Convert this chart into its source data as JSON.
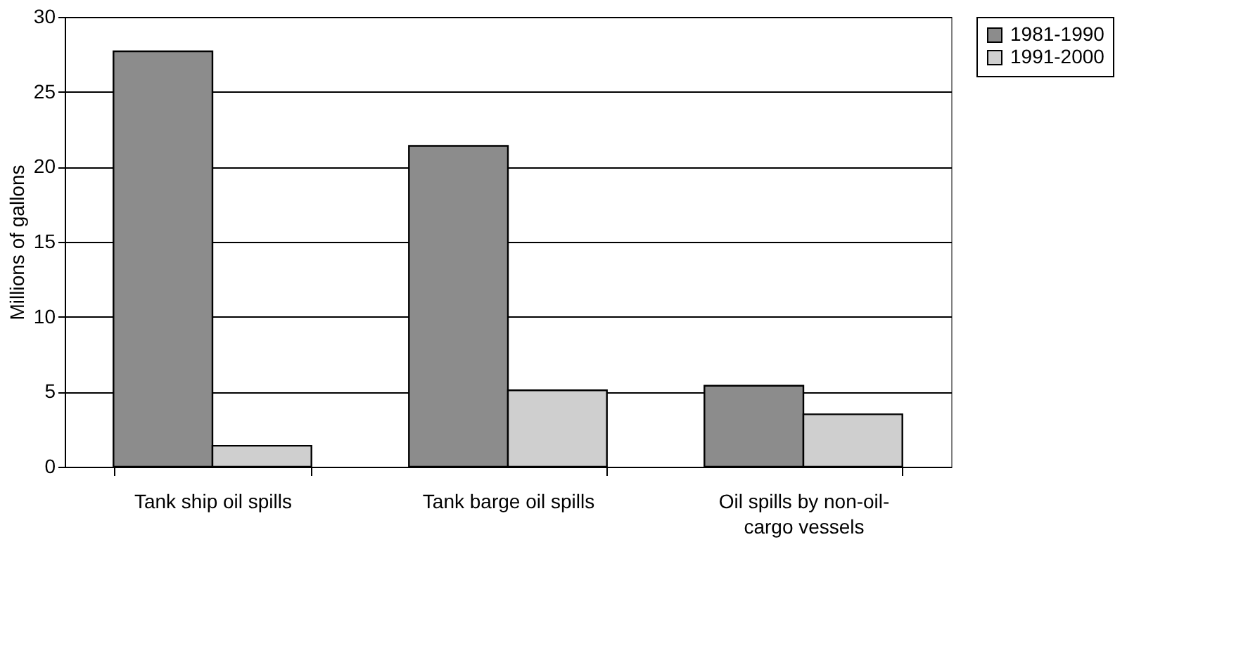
{
  "chart_data": {
    "type": "bar",
    "ylabel": "Millions of gallons",
    "categories": [
      "Tank ship oil spills",
      "Tank barge oil spills",
      "Oil spills by non-oil-cargo vessels"
    ],
    "series": [
      {
        "name": "1981-1990",
        "color": "#8c8c8c",
        "values": [
          27.7,
          21.4,
          5.4
        ]
      },
      {
        "name": "1991-2000",
        "color": "#cfcfcf",
        "values": [
          1.4,
          5.1,
          3.5
        ]
      }
    ],
    "ylim": [
      0,
      30
    ],
    "yticks": [
      0,
      5,
      10,
      15,
      20,
      25,
      30
    ],
    "grid": "y",
    "legend": "right"
  }
}
